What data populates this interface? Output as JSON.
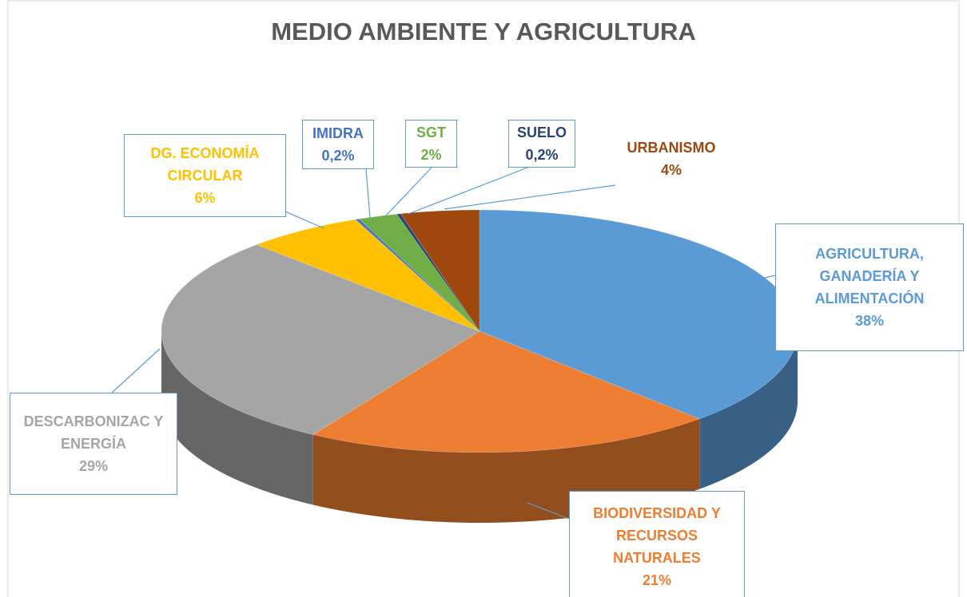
{
  "chart_data": {
    "type": "pie",
    "title": "MEDIO AMBIENTE Y AGRICULTURA",
    "categories": [
      "AGRICULTURA, GANADERÍA Y ALIMENTACIÓN",
      "BIODIVERSIDAD Y RECURSOS NATURALES",
      "DESCARBONIZAC Y ENERGÍA",
      "DG. ECONOMÍA CIRCULAR",
      "IMIDRA",
      "SGT",
      "SUELO",
      "URBANISMO"
    ],
    "values": [
      38,
      21,
      29,
      6,
      0.2,
      2,
      0.2,
      4
    ],
    "value_labels": [
      "38%",
      "21%",
      "29%",
      "6%",
      "0,2%",
      "2%",
      "0,2%",
      "4%"
    ],
    "colors": [
      "#5b9bd5",
      "#ed7d31",
      "#a5a5a5",
      "#ffc000",
      "#4472c4",
      "#70ad47",
      "#264478",
      "#9e480e"
    ]
  }
}
